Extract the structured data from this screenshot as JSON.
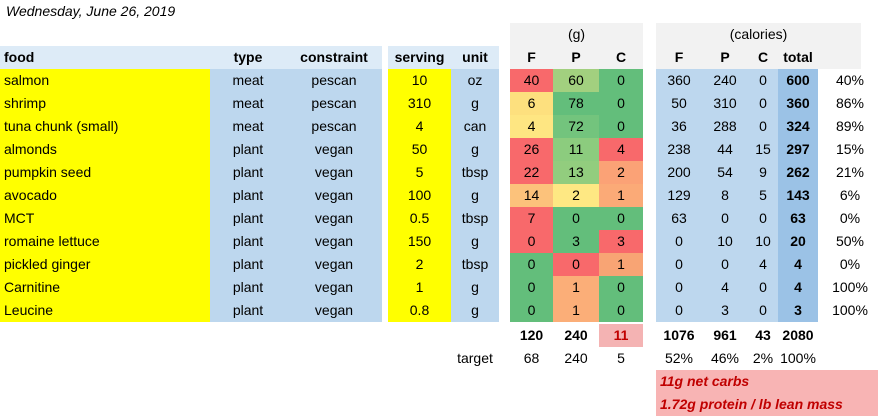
{
  "date": "Wednesday, June 26, 2019",
  "group_headers": {
    "grams": "(g)",
    "calories": "(calories)"
  },
  "headers": {
    "food": "food",
    "type": "type",
    "constraint": "constraint",
    "serving": "serving",
    "unit": "unit",
    "g_f": "F",
    "g_p": "P",
    "g_c": "C",
    "cal_f": "F",
    "cal_p": "P",
    "cal_c": "C",
    "cal_total": "total"
  },
  "rows": [
    {
      "food": "salmon",
      "type": "meat",
      "constraint": "pescan",
      "serving": "10",
      "unit": "oz",
      "f": "40",
      "p": "60",
      "c": "0",
      "cf": "360",
      "cp": "240",
      "cc": "0",
      "total": "600",
      "pct": "40%",
      "colors": [
        "#f8696b",
        "#a2d07f",
        "#63be7b"
      ]
    },
    {
      "food": "shrimp",
      "type": "meat",
      "constraint": "pescan",
      "serving": "310",
      "unit": "g",
      "f": "6",
      "p": "78",
      "c": "0",
      "cf": "50",
      "cp": "310",
      "cc": "0",
      "total": "360",
      "pct": "86%",
      "colors": [
        "#fde07e",
        "#63be7b",
        "#63be7b"
      ]
    },
    {
      "food": "tuna chunk (small)",
      "type": "meat",
      "constraint": "pescan",
      "serving": "4",
      "unit": "can",
      "f": "4",
      "p": "72",
      "c": "0",
      "cf": "36",
      "cp": "288",
      "cc": "0",
      "total": "324",
      "pct": "89%",
      "colors": [
        "#fee682",
        "#73c47d",
        "#63be7b"
      ]
    },
    {
      "food": "almonds",
      "type": "plant",
      "constraint": "vegan",
      "serving": "50",
      "unit": "g",
      "f": "26",
      "p": "11",
      "c": "4",
      "cf": "238",
      "cp": "44",
      "cc": "15",
      "total": "297",
      "pct": "15%",
      "colors": [
        "#f8696b",
        "#8ccc7e",
        "#f8696b"
      ]
    },
    {
      "food": "pumpkin seed",
      "type": "plant",
      "constraint": "vegan",
      "serving": "5",
      "unit": "tbsp",
      "f": "22",
      "p": "13",
      "c": "2",
      "cf": "200",
      "cp": "54",
      "cc": "9",
      "total": "262",
      "pct": "21%",
      "colors": [
        "#f8696b",
        "#92cd7e",
        "#fba276"
      ]
    },
    {
      "food": "avocado",
      "type": "plant",
      "constraint": "vegan",
      "serving": "100",
      "unit": "g",
      "f": "14",
      "p": "2",
      "c": "1",
      "cf": "129",
      "cp": "8",
      "cc": "5",
      "total": "143",
      "pct": "6%",
      "colors": [
        "#fcc27b",
        "#fee883",
        "#fbaa77"
      ]
    },
    {
      "food": "MCT",
      "type": "plant",
      "constraint": "vegan",
      "serving": "0.5",
      "unit": "tbsp",
      "f": "7",
      "p": "0",
      "c": "0",
      "cf": "63",
      "cp": "0",
      "cc": "0",
      "total": "63",
      "pct": "0%",
      "colors": [
        "#f8696b",
        "#63be7b",
        "#63be7b"
      ]
    },
    {
      "food": "romaine lettuce",
      "type": "plant",
      "constraint": "vegan",
      "serving": "150",
      "unit": "g",
      "f": "0",
      "p": "3",
      "c": "3",
      "cf": "0",
      "cp": "10",
      "cc": "10",
      "total": "20",
      "pct": "50%",
      "colors": [
        "#f8696b",
        "#63be7b",
        "#f8696b"
      ]
    },
    {
      "food": "pickled ginger",
      "type": "plant",
      "constraint": "vegan",
      "serving": "2",
      "unit": "tbsp",
      "f": "0",
      "p": "0",
      "c": "1",
      "cf": "0",
      "cp": "0",
      "cc": "4",
      "total": "4",
      "pct": "0%",
      "colors": [
        "#63be7b",
        "#f8696b",
        "#f8a474"
      ]
    },
    {
      "food": "Carnitine",
      "type": "plant",
      "constraint": "vegan",
      "serving": "1",
      "unit": "g",
      "f": "0",
      "p": "1",
      "c": "0",
      "cf": "0",
      "cp": "4",
      "cc": "0",
      "total": "4",
      "pct": "100%",
      "colors": [
        "#63be7b",
        "#fbae78",
        "#63be7b"
      ]
    },
    {
      "food": "Leucine",
      "type": "plant",
      "constraint": "vegan",
      "serving": "0.8",
      "unit": "g",
      "f": "0",
      "p": "1",
      "c": "0",
      "cf": "0",
      "cp": "3",
      "cc": "0",
      "total": "3",
      "pct": "100%",
      "colors": [
        "#63be7b",
        "#fbae78",
        "#63be7b"
      ]
    }
  ],
  "totals": {
    "f": "120",
    "p": "240",
    "c": "11",
    "cf": "1076",
    "cp": "961",
    "cc": "43",
    "total": "2080"
  },
  "target": {
    "label": "target",
    "f": "68",
    "p": "240",
    "c": "5",
    "pf": "52%",
    "pp": "46%",
    "pc": "2%",
    "ptotal": "100%"
  },
  "notes": [
    "11g net carbs",
    "1.72g protein / lb lean mass"
  ],
  "colors": {
    "yellow": "#ffff00",
    "blue": "#bdd7ee",
    "header_blue": "#ddebf7",
    "gray": "#f2f2f2",
    "total_blue": "#9bc2e6",
    "carb_total_bg": "#f4b3b3",
    "note_bg": "#f8b4b4",
    "note_text": "#c00000"
  }
}
